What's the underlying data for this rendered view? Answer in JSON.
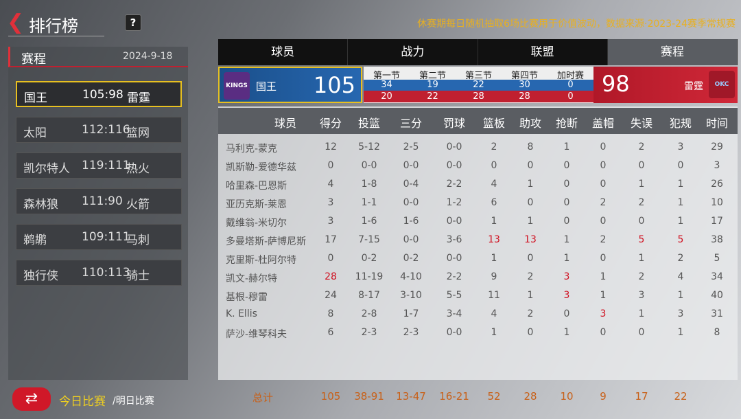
{
  "header": {
    "back_icon": "chevron-left-icon",
    "title": "排行榜",
    "help": "?",
    "notice": "休赛期每日随机抽取6场比赛用于价值波动，数据来源·2023-24赛季常规赛"
  },
  "schedule": {
    "label": "赛程",
    "date": "2024-9-18",
    "matches": [
      {
        "home": "国王",
        "score": "105:98",
        "away": "雷霆",
        "selected": true
      },
      {
        "home": "太阳",
        "score": "112:116",
        "away": "篮网"
      },
      {
        "home": "凯尔特人",
        "score": "119:111",
        "away": "热火"
      },
      {
        "home": "森林狼",
        "score": "111:90",
        "away": "火箭"
      },
      {
        "home": "鹈鹕",
        "score": "109:111",
        "away": "马刺"
      },
      {
        "home": "独行侠",
        "score": "110:113",
        "away": "骑士"
      }
    ]
  },
  "tabs": [
    {
      "label": "球员"
    },
    {
      "label": "战力"
    },
    {
      "label": "联盟"
    },
    {
      "label": "赛程",
      "active": true
    }
  ],
  "scoreboard": {
    "home": {
      "name": "国王",
      "score": "105",
      "logo": "KINGS",
      "quarters": [
        "34",
        "19",
        "22",
        "30",
        "0"
      ]
    },
    "away": {
      "name": "雷霆",
      "score": "98",
      "logo": "OKC",
      "quarters": [
        "20",
        "22",
        "28",
        "28",
        "0"
      ]
    },
    "quarter_labels": [
      "第一节",
      "第二节",
      "第三节",
      "第四节",
      "加时赛"
    ],
    "home_color": "#2767b0",
    "away_color": "#c02030"
  },
  "table": {
    "columns": [
      "球员",
      "得分",
      "投篮",
      "三分",
      "罚球",
      "篮板",
      "助攻",
      "抢断",
      "盖帽",
      "失误",
      "犯规",
      "时间"
    ],
    "highlight_color": "#d01020",
    "rows": [
      {
        "cells": [
          "马利克-蒙克",
          "12",
          "5-12",
          "2-5",
          "0-0",
          "2",
          "8",
          "1",
          "0",
          "2",
          "3",
          "29"
        ],
        "red": []
      },
      {
        "cells": [
          "凯斯勒-爱德华兹",
          "0",
          "0-0",
          "0-0",
          "0-0",
          "0",
          "0",
          "0",
          "0",
          "0",
          "0",
          "3"
        ],
        "red": []
      },
      {
        "cells": [
          "哈里森-巴恩斯",
          "4",
          "1-8",
          "0-4",
          "2-2",
          "4",
          "1",
          "0",
          "0",
          "1",
          "1",
          "26"
        ],
        "red": []
      },
      {
        "cells": [
          "亚历克斯-莱恩",
          "3",
          "1-1",
          "0-0",
          "1-2",
          "6",
          "0",
          "0",
          "2",
          "2",
          "1",
          "10"
        ],
        "red": []
      },
      {
        "cells": [
          "戴维翁-米切尔",
          "3",
          "1-6",
          "1-6",
          "0-0",
          "1",
          "1",
          "0",
          "0",
          "0",
          "1",
          "17"
        ],
        "red": []
      },
      {
        "cells": [
          "多曼塔斯-萨博尼斯",
          "17",
          "7-15",
          "0-0",
          "3-6",
          "13",
          "13",
          "1",
          "2",
          "5",
          "5",
          "38"
        ],
        "red": [
          5,
          6,
          9,
          10
        ]
      },
      {
        "cells": [
          "克里斯-杜阿尔特",
          "0",
          "0-2",
          "0-2",
          "0-0",
          "1",
          "0",
          "1",
          "0",
          "1",
          "2",
          "5"
        ],
        "red": []
      },
      {
        "cells": [
          "凯文-赫尔特",
          "28",
          "11-19",
          "4-10",
          "2-2",
          "9",
          "2",
          "3",
          "1",
          "2",
          "4",
          "34"
        ],
        "red": [
          1,
          7
        ]
      },
      {
        "cells": [
          "基根-穆雷",
          "24",
          "8-17",
          "3-10",
          "5-5",
          "11",
          "1",
          "3",
          "1",
          "3",
          "1",
          "40"
        ],
        "red": [
          7
        ]
      },
      {
        "cells": [
          "K. Ellis",
          "8",
          "2-8",
          "1-7",
          "3-4",
          "4",
          "2",
          "0",
          "3",
          "1",
          "3",
          "31"
        ],
        "red": [
          8
        ]
      },
      {
        "cells": [
          "萨沙-维琴科夫",
          "6",
          "2-3",
          "2-3",
          "0-0",
          "1",
          "0",
          "1",
          "0",
          "0",
          "1",
          "8"
        ],
        "red": []
      }
    ],
    "totals": {
      "label": "总计",
      "values": [
        "105",
        "38-91",
        "13-47",
        "16-21",
        "52",
        "28",
        "10",
        "9",
        "17",
        "22"
      ]
    }
  },
  "footer": {
    "icon": "swap-icon",
    "today": "今日比赛",
    "tomorrow": "/明日比赛"
  }
}
